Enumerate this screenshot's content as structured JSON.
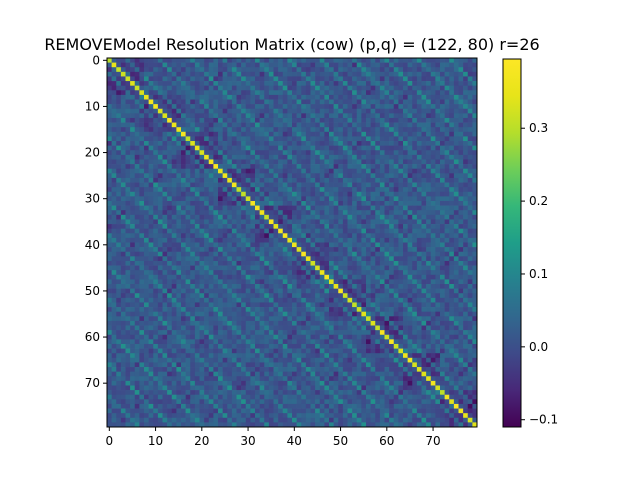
{
  "chart_data": {
    "type": "heatmap",
    "title": "REMOVEModel Resolution Matrix (cow) (p,q) = (122, 80) r=26",
    "xlabel": "",
    "ylabel": "",
    "rows": 80,
    "cols": 80,
    "xlim": [
      0,
      79
    ],
    "ylim": [
      79,
      0
    ],
    "x_ticks": [
      0,
      10,
      20,
      30,
      40,
      50,
      60,
      70
    ],
    "y_ticks": [
      0,
      10,
      20,
      30,
      40,
      50,
      60,
      70
    ],
    "colormap": "viridis",
    "colorbar": {
      "min": -0.11,
      "max": 0.395,
      "ticks": [
        -0.1,
        0.0,
        0.1,
        0.2,
        0.3
      ],
      "tick_labels": [
        "−0.1",
        "0.0",
        "0.1",
        "0.2",
        "0.3"
      ]
    },
    "diagonal_value_range": [
      0.3,
      0.395
    ],
    "off_diagonal_value_range": [
      -0.1,
      0.15
    ],
    "grid": false
  }
}
